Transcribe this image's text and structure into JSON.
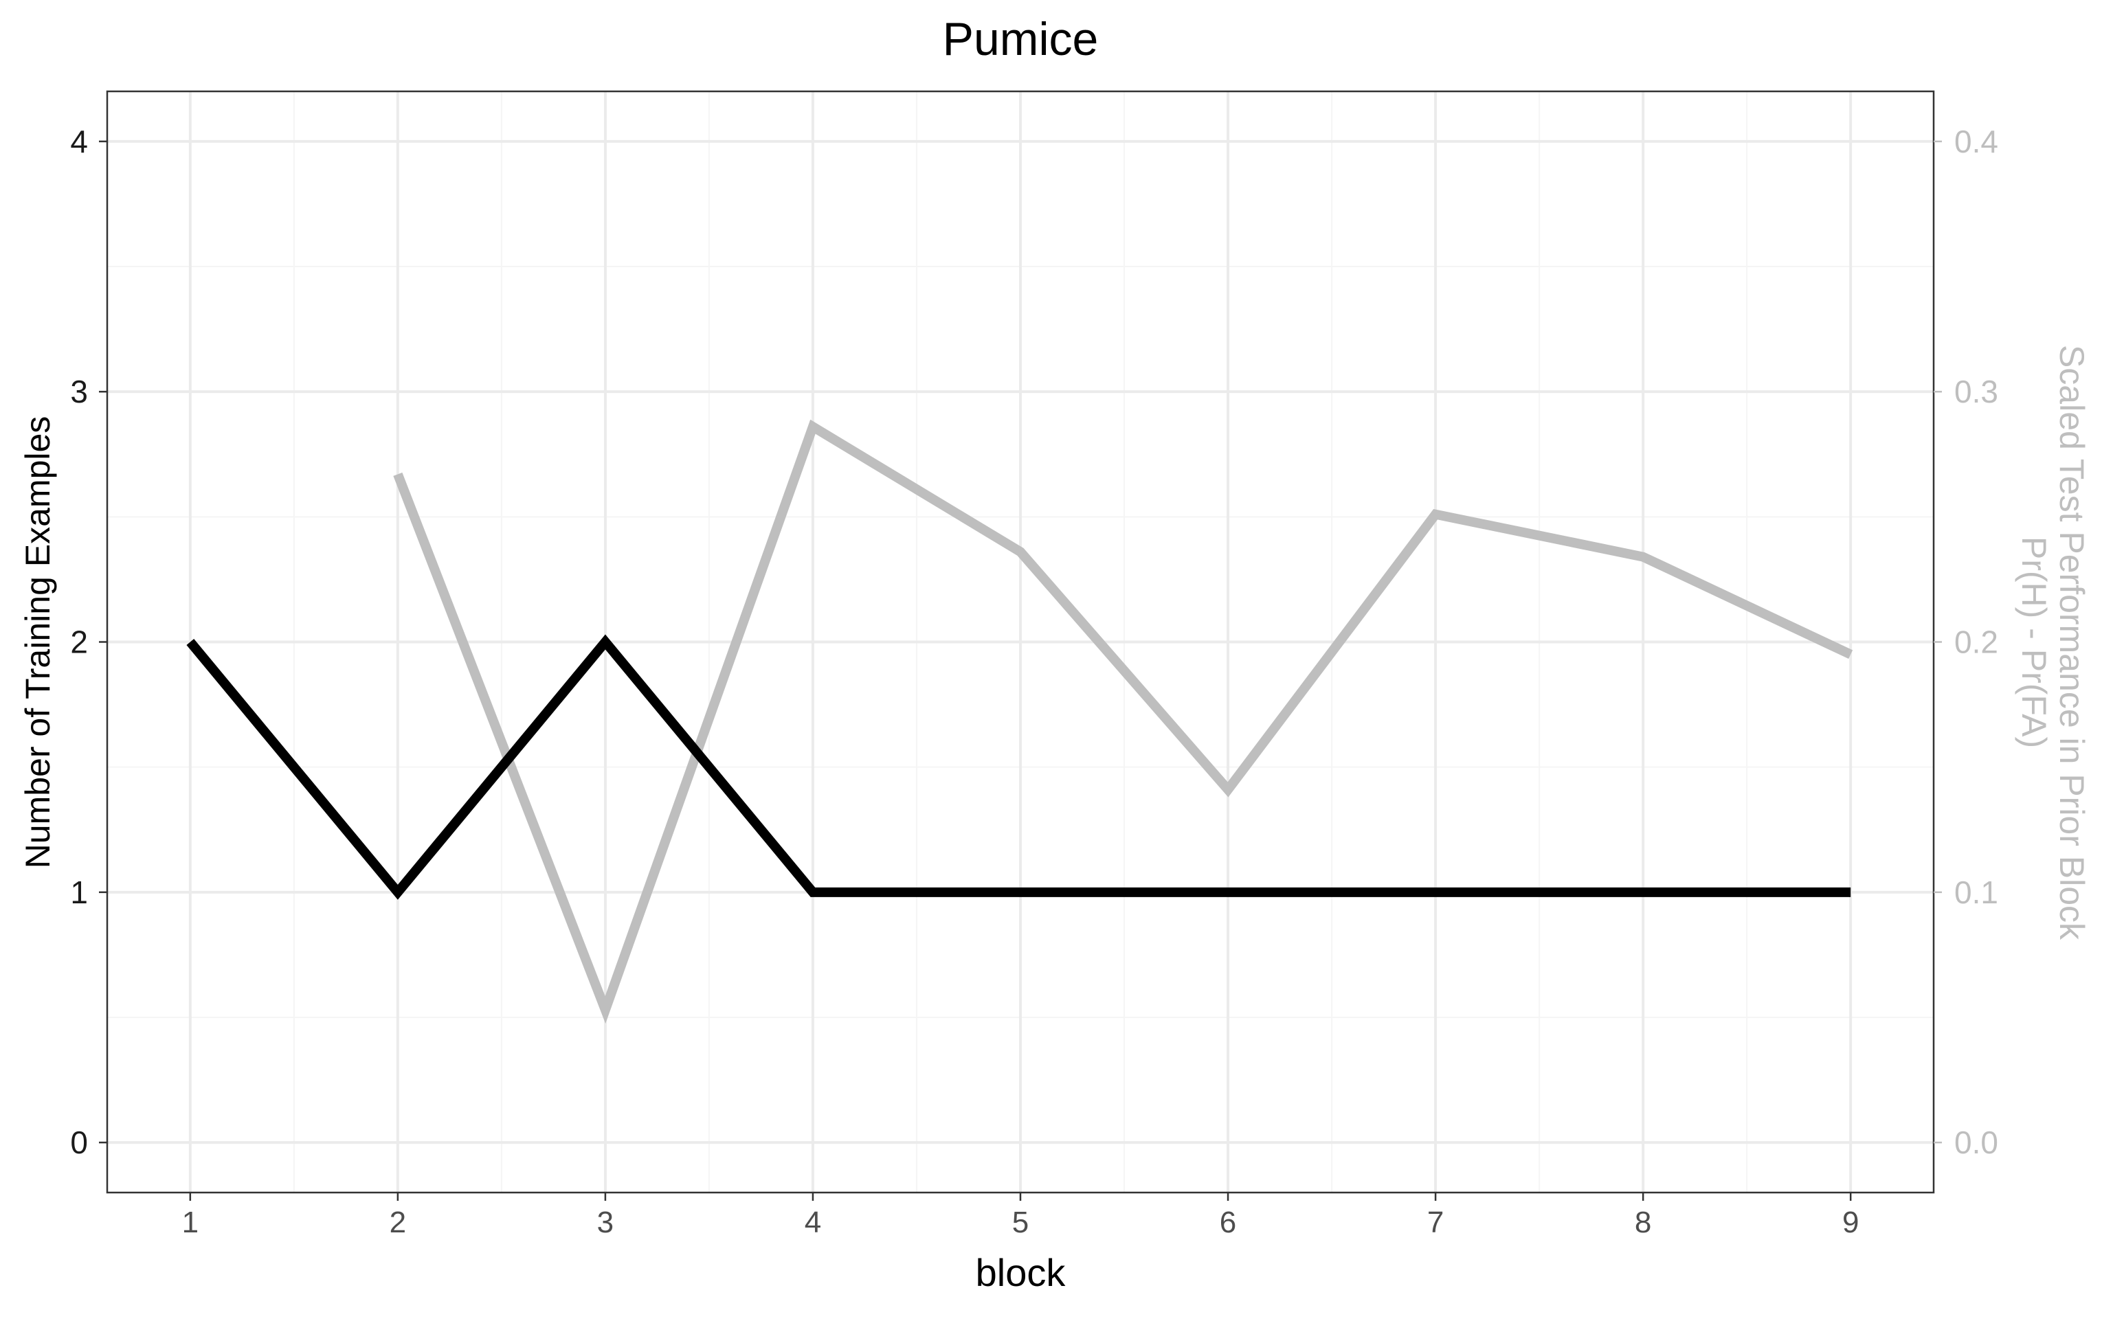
{
  "chart_data": {
    "type": "line",
    "title": "Pumice",
    "xlabel": "block",
    "ylabel": "Number of Training Examples",
    "y2label": [
      "Scaled Test Performance in Prior Block",
      "Pr(H) - Pr(FA)"
    ],
    "x": [
      1,
      2,
      3,
      4,
      5,
      6,
      7,
      8,
      9
    ],
    "xlim": [
      0.6,
      9.4
    ],
    "ylim": [
      -0.2,
      4.2
    ],
    "y2lim": [
      -0.02,
      0.42
    ],
    "x_ticks": [
      "1",
      "2",
      "3",
      "4",
      "5",
      "6",
      "7",
      "8",
      "9"
    ],
    "y_ticks": [
      "0",
      "1",
      "2",
      "3",
      "4"
    ],
    "y2_ticks": [
      "0.0",
      "0.1",
      "0.2",
      "0.3",
      "0.4"
    ],
    "grid": true,
    "series": [
      {
        "axis": "left",
        "color": "#000000",
        "x": [
          1,
          2,
          3,
          4,
          5,
          6,
          7,
          8,
          9
        ],
        "values": [
          2,
          1,
          2,
          1,
          1,
          1,
          1,
          1,
          1
        ]
      },
      {
        "axis": "right",
        "color": "#bebebe",
        "x": [
          2,
          3,
          4,
          5,
          6,
          7,
          8,
          9
        ],
        "values": [
          0.267,
          0.053,
          0.286,
          0.236,
          0.141,
          0.251,
          0.234,
          0.195
        ]
      }
    ]
  },
  "colors": {
    "primary_axis": "#000000",
    "secondary_axis": "#bebebe",
    "grid_major": "#ebebeb",
    "grid_minor": "#f5f5f5",
    "panel_border": "#333333"
  }
}
